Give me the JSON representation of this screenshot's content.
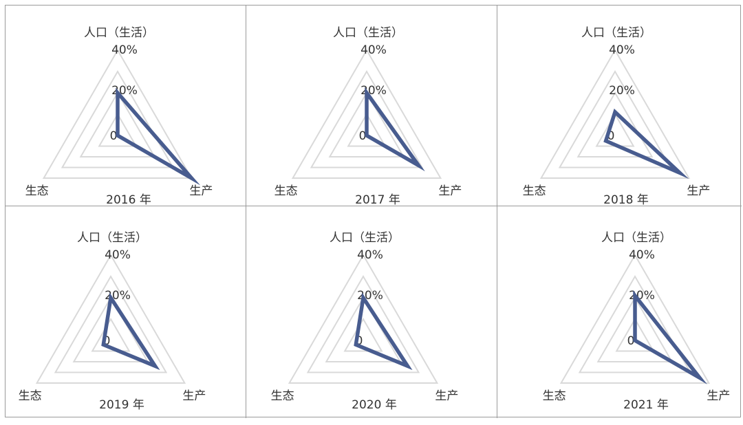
{
  "chart_data": [
    {
      "type": "radar",
      "title": "2016 年",
      "axes": [
        "人口（生活）",
        "生产",
        "生态"
      ],
      "tick_labels": [
        "0",
        "20%",
        "40%"
      ],
      "rlim": [
        0,
        40
      ],
      "values": [
        20,
        40,
        0
      ]
    },
    {
      "type": "radar",
      "title": "2017 年",
      "axes": [
        "人口（生活）",
        "生产",
        "生态"
      ],
      "tick_labels": [
        "0",
        "20%",
        "40%"
      ],
      "rlim": [
        0,
        40
      ],
      "values": [
        20,
        28,
        0
      ]
    },
    {
      "type": "radar",
      "title": "2018 年",
      "axes": [
        "人口（生活）",
        "生产",
        "生态"
      ],
      "tick_labels": [
        "0",
        "20%",
        "40%"
      ],
      "rlim": [
        0,
        40
      ],
      "values": [
        11,
        35,
        5
      ]
    },
    {
      "type": "radar",
      "title": "2019 年",
      "axes": [
        "人口（生活）",
        "生产",
        "生态"
      ],
      "tick_labels": [
        "0",
        "20%",
        "40%"
      ],
      "rlim": [
        0,
        40
      ],
      "values": [
        20,
        24,
        4
      ]
    },
    {
      "type": "radar",
      "title": "2020 年",
      "axes": [
        "人口（生活）",
        "生产",
        "生态"
      ],
      "tick_labels": [
        "0",
        "20%",
        "40%"
      ],
      "rlim": [
        0,
        40
      ],
      "values": [
        20,
        24,
        4
      ]
    },
    {
      "type": "radar",
      "title": "2021 年",
      "axes": [
        "人口（生活）",
        "生产",
        "生态"
      ],
      "tick_labels": [
        "0",
        "20%",
        "40%"
      ],
      "rlim": [
        0,
        40
      ],
      "values": [
        21,
        35,
        0
      ]
    }
  ],
  "colors": {
    "series": "#485c8f",
    "grid": "#d9d9d9",
    "border": "#9a9a9a",
    "text": "#333333"
  }
}
